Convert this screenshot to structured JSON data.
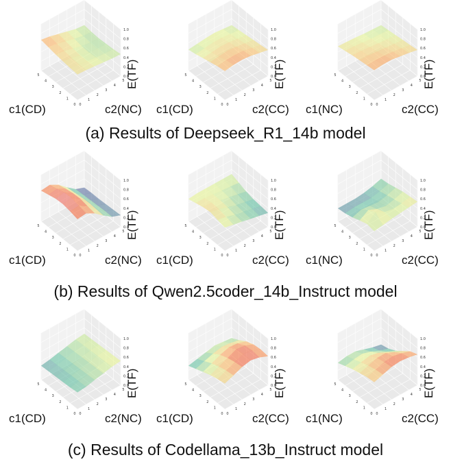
{
  "chart_data": [
    {
      "type": "surface3d",
      "group": "a",
      "xlabel": "c1(CD)",
      "ylabel": "c2(NC)",
      "zlabel": "E(TF)",
      "x": [
        0,
        1,
        2,
        3,
        4,
        5
      ],
      "y": [
        0,
        1,
        2,
        3,
        4,
        5
      ],
      "zlim": [
        0.0,
        1.0
      ],
      "zticks": [
        "0.0",
        "0.2",
        "0.4",
        "0.6",
        "0.8",
        "1.0"
      ],
      "colormap": "Spectral-reversed",
      "top_color": "#e8727a",
      "z": [
        [
          0.55,
          0.54,
          0.52,
          0.5,
          0.48,
          0.47
        ],
        [
          0.56,
          0.54,
          0.5,
          0.48,
          0.46,
          0.45
        ],
        [
          0.58,
          0.55,
          0.5,
          0.46,
          0.44,
          0.44
        ],
        [
          0.6,
          0.57,
          0.52,
          0.47,
          0.44,
          0.43
        ],
        [
          0.63,
          0.6,
          0.55,
          0.5,
          0.46,
          0.44
        ],
        [
          0.66,
          0.63,
          0.58,
          0.53,
          0.48,
          0.46
        ]
      ]
    },
    {
      "type": "surface3d",
      "group": "a",
      "xlabel": "c1(CD)",
      "ylabel": "c2(CC)",
      "zlabel": "E(TF)",
      "x": [
        0,
        1,
        2,
        3,
        4,
        5
      ],
      "y": [
        0,
        1,
        2,
        3,
        4,
        5
      ],
      "zlim": [
        0.0,
        1.0
      ],
      "zticks": [
        "0.0",
        "0.2",
        "0.4",
        "0.6",
        "0.8",
        "1.0"
      ],
      "colormap": "Spectral-reversed",
      "top_color": "#e8727a",
      "z": [
        [
          0.62,
          0.65,
          0.66,
          0.64,
          0.6,
          0.56
        ],
        [
          0.6,
          0.63,
          0.64,
          0.62,
          0.58,
          0.54
        ],
        [
          0.56,
          0.58,
          0.6,
          0.58,
          0.55,
          0.52
        ],
        [
          0.52,
          0.54,
          0.56,
          0.55,
          0.52,
          0.5
        ],
        [
          0.48,
          0.5,
          0.52,
          0.52,
          0.5,
          0.48
        ],
        [
          0.45,
          0.47,
          0.49,
          0.5,
          0.48,
          0.46
        ]
      ]
    },
    {
      "type": "surface3d",
      "group": "a",
      "xlabel": "c1(NC)",
      "ylabel": "c2(CC)",
      "zlabel": "E(TF)",
      "x": [
        0,
        1,
        2,
        3,
        4,
        5
      ],
      "y": [
        0,
        1,
        2,
        3,
        4,
        5
      ],
      "zlim": [
        0.0,
        1.0
      ],
      "zticks": [
        "0.0",
        "0.2",
        "0.4",
        "0.6",
        "0.8",
        "1.0"
      ],
      "colormap": "Spectral-reversed",
      "top_color": "#e8727a",
      "z": [
        [
          0.64,
          0.66,
          0.66,
          0.63,
          0.6,
          0.56
        ],
        [
          0.62,
          0.63,
          0.62,
          0.6,
          0.57,
          0.54
        ],
        [
          0.6,
          0.6,
          0.58,
          0.56,
          0.54,
          0.52
        ],
        [
          0.58,
          0.57,
          0.55,
          0.53,
          0.51,
          0.5
        ],
        [
          0.55,
          0.54,
          0.52,
          0.5,
          0.49,
          0.48
        ],
        [
          0.52,
          0.51,
          0.5,
          0.48,
          0.47,
          0.46
        ]
      ]
    },
    {
      "type": "surface3d",
      "group": "b",
      "xlabel": "c1(CD)",
      "ylabel": "c2(NC)",
      "zlabel": "E(TF)",
      "x": [
        0,
        1,
        2,
        3,
        4,
        5
      ],
      "y": [
        0,
        1,
        2,
        3,
        4,
        5
      ],
      "zlim": [
        0.0,
        1.0
      ],
      "zticks": [
        "0.0",
        "0.2",
        "0.4",
        "0.6",
        "0.8",
        "1.0"
      ],
      "colormap": "Spectral-reversed",
      "top_color": "#e8727a",
      "z": [
        [
          0.68,
          0.7,
          0.6,
          0.45,
          0.32,
          0.25
        ],
        [
          0.72,
          0.74,
          0.63,
          0.46,
          0.32,
          0.24
        ],
        [
          0.75,
          0.78,
          0.66,
          0.47,
          0.31,
          0.23
        ],
        [
          0.74,
          0.77,
          0.65,
          0.46,
          0.3,
          0.22
        ],
        [
          0.7,
          0.72,
          0.62,
          0.44,
          0.29,
          0.22
        ],
        [
          0.66,
          0.68,
          0.58,
          0.42,
          0.28,
          0.21
        ]
      ]
    },
    {
      "type": "surface3d",
      "group": "b",
      "xlabel": "c1(CD)",
      "ylabel": "c2(CC)",
      "zlabel": "E(TF)",
      "x": [
        0,
        1,
        2,
        3,
        4,
        5
      ],
      "y": [
        0,
        1,
        2,
        3,
        4,
        5
      ],
      "zlim": [
        0.0,
        1.0
      ],
      "zticks": [
        "0.0",
        "0.2",
        "0.4",
        "0.6",
        "0.8",
        "1.0"
      ],
      "colormap": "Spectral-reversed",
      "top_color": "#e8727a",
      "z": [
        [
          0.5,
          0.46,
          0.42,
          0.38,
          0.34,
          0.3
        ],
        [
          0.54,
          0.5,
          0.44,
          0.4,
          0.36,
          0.32
        ],
        [
          0.58,
          0.54,
          0.48,
          0.42,
          0.38,
          0.34
        ],
        [
          0.56,
          0.55,
          0.5,
          0.46,
          0.42,
          0.38
        ],
        [
          0.52,
          0.52,
          0.5,
          0.48,
          0.46,
          0.44
        ],
        [
          0.48,
          0.5,
          0.5,
          0.5,
          0.5,
          0.5
        ]
      ]
    },
    {
      "type": "surface3d",
      "group": "b",
      "xlabel": "c1(NC)",
      "ylabel": "c2(CC)",
      "zlabel": "E(TF)",
      "x": [
        0,
        1,
        2,
        3,
        4,
        5
      ],
      "y": [
        0,
        1,
        2,
        3,
        4,
        5
      ],
      "zlim": [
        0.0,
        1.0
      ],
      "zticks": [
        "0.0",
        "0.2",
        "0.4",
        "0.6",
        "0.8",
        "1.0"
      ],
      "colormap": "Spectral-reversed",
      "top_color": "#e8727a",
      "z": [
        [
          0.42,
          0.45,
          0.48,
          0.5,
          0.52,
          0.54
        ],
        [
          0.45,
          0.6,
          0.5,
          0.46,
          0.48,
          0.52
        ],
        [
          0.4,
          0.52,
          0.44,
          0.4,
          0.44,
          0.5
        ],
        [
          0.34,
          0.4,
          0.38,
          0.36,
          0.4,
          0.46
        ],
        [
          0.3,
          0.32,
          0.32,
          0.32,
          0.36,
          0.42
        ],
        [
          0.28,
          0.28,
          0.28,
          0.3,
          0.34,
          0.4
        ]
      ]
    },
    {
      "type": "surface3d",
      "group": "c",
      "xlabel": "c1(CD)",
      "ylabel": "c2(NC)",
      "zlabel": "E(TF)",
      "x": [
        0,
        1,
        2,
        3,
        4,
        5
      ],
      "y": [
        0,
        1,
        2,
        3,
        4,
        5
      ],
      "zlim": [
        0.0,
        1.0
      ],
      "zticks": [
        "0.0",
        "0.2",
        "0.4",
        "0.6",
        "0.8",
        "1.0"
      ],
      "colormap": "Spectral-reversed",
      "top_color": "#e8727a",
      "z": [
        [
          0.36,
          0.38,
          0.42,
          0.46,
          0.5,
          0.52
        ],
        [
          0.34,
          0.37,
          0.41,
          0.45,
          0.49,
          0.51
        ],
        [
          0.33,
          0.36,
          0.4,
          0.44,
          0.48,
          0.5
        ],
        [
          0.32,
          0.35,
          0.39,
          0.43,
          0.47,
          0.49
        ],
        [
          0.31,
          0.34,
          0.38,
          0.42,
          0.46,
          0.48
        ],
        [
          0.3,
          0.33,
          0.37,
          0.41,
          0.45,
          0.47
        ]
      ]
    },
    {
      "type": "surface3d",
      "group": "c",
      "xlabel": "c1(CD)",
      "ylabel": "c2(CC)",
      "zlabel": "E(TF)",
      "x": [
        0,
        1,
        2,
        3,
        4,
        5
      ],
      "y": [
        0,
        1,
        2,
        3,
        4,
        5
      ],
      "zlim": [
        0.0,
        1.0
      ],
      "zticks": [
        "0.0",
        "0.2",
        "0.4",
        "0.6",
        "0.8",
        "1.0"
      ],
      "colormap": "Spectral-reversed",
      "top_color": "#e8727a",
      "z": [
        [
          0.55,
          0.62,
          0.7,
          0.74,
          0.7,
          0.62
        ],
        [
          0.52,
          0.6,
          0.68,
          0.75,
          0.72,
          0.64
        ],
        [
          0.48,
          0.56,
          0.64,
          0.72,
          0.7,
          0.62
        ],
        [
          0.42,
          0.5,
          0.58,
          0.64,
          0.62,
          0.56
        ],
        [
          0.36,
          0.42,
          0.48,
          0.52,
          0.5,
          0.46
        ],
        [
          0.3,
          0.34,
          0.38,
          0.42,
          0.4,
          0.38
        ]
      ]
    },
    {
      "type": "surface3d",
      "group": "c",
      "xlabel": "c1(NC)",
      "ylabel": "c2(CC)",
      "zlabel": "E(TF)",
      "x": [
        0,
        1,
        2,
        3,
        4,
        5
      ],
      "y": [
        0,
        1,
        2,
        3,
        4,
        5
      ],
      "zlim": [
        0.0,
        1.0
      ],
      "zticks": [
        "0.0",
        "0.2",
        "0.4",
        "0.6",
        "0.8",
        "1.0"
      ],
      "colormap": "Spectral-reversed",
      "top_color": "#e8727a",
      "z": [
        [
          0.58,
          0.64,
          0.7,
          0.72,
          0.7,
          0.66
        ],
        [
          0.56,
          0.62,
          0.68,
          0.7,
          0.66,
          0.6
        ],
        [
          0.52,
          0.58,
          0.64,
          0.64,
          0.56,
          0.48
        ],
        [
          0.48,
          0.52,
          0.56,
          0.52,
          0.44,
          0.36
        ],
        [
          0.42,
          0.46,
          0.48,
          0.42,
          0.34,
          0.28
        ],
        [
          0.36,
          0.4,
          0.4,
          0.34,
          0.28,
          0.24
        ]
      ]
    }
  ],
  "captions": {
    "a": "(a) Results of Deepseek_R1_14b model",
    "b": "(b) Results of Qwen2.5coder_14b_Instruct model",
    "c": "(c) Results of Codellama_13b_Instruct model"
  },
  "axis_ticks": [
    "0",
    "1",
    "2",
    "3",
    "4",
    "5"
  ]
}
